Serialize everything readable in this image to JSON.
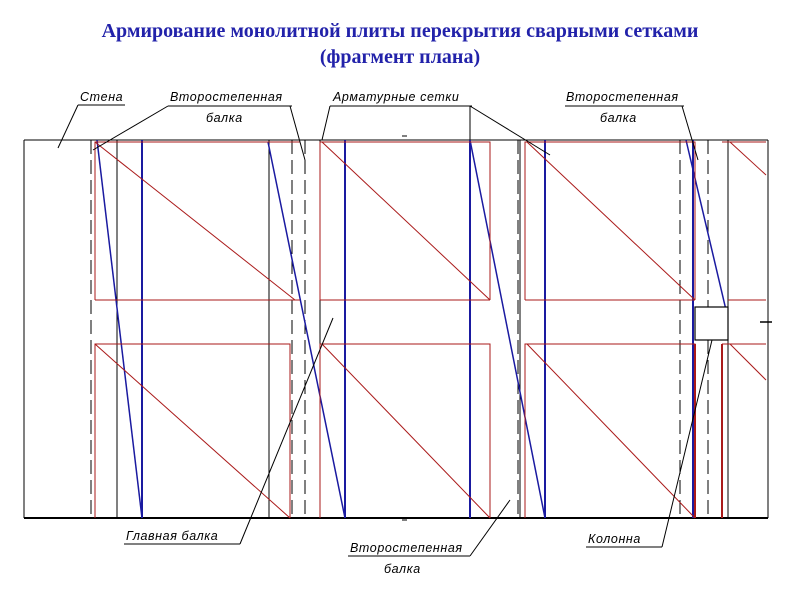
{
  "title": {
    "line1": "Армирование монолитной плиты перекрытия сварными сетками",
    "line2": "(фрагмент плана)"
  },
  "labels": {
    "wall": "Стена",
    "secondary_beam_top_left_1": "Второстепенная",
    "secondary_beam_top_left_2": "балка",
    "mesh": "Арматурные сетки",
    "secondary_beam_top_right_1": "Второстепенная",
    "secondary_beam_top_right_2": "балка",
    "main_beam": "Главная балка",
    "secondary_beam_bottom_1": "Второстепенная",
    "secondary_beam_bottom_2": "балка",
    "column": "Колонна"
  },
  "colors": {
    "title": "#2222aa",
    "mesh": "#aa1a1a",
    "main_beam": "#1a1aa0",
    "outline": "#000000"
  }
}
